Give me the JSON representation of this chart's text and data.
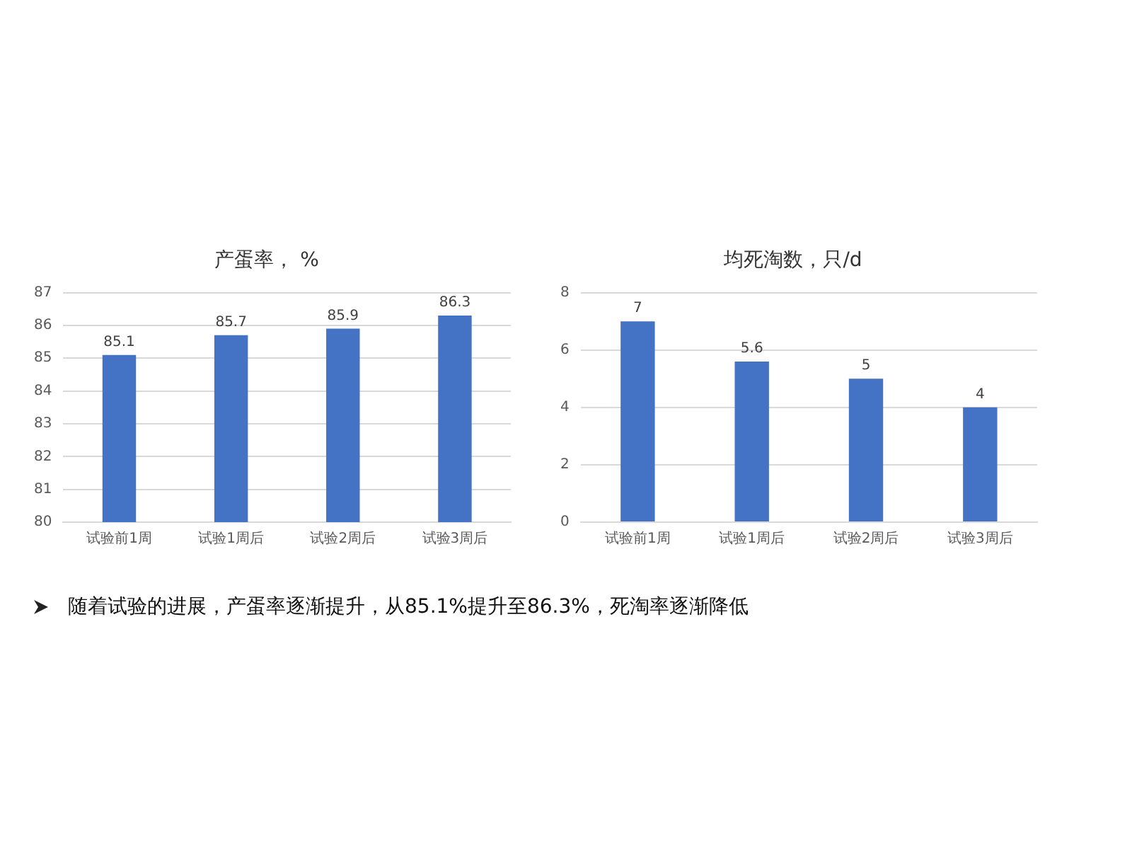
{
  "chart_data": [
    {
      "type": "bar",
      "title": "产蛋率， %",
      "categories": [
        "试验前1周",
        "试验1周后",
        "试验2周后",
        "试验3周后"
      ],
      "values": [
        85.1,
        85.7,
        85.9,
        86.3
      ],
      "color": "#4472c4",
      "ylim": [
        80,
        87
      ],
      "yticks": [
        80,
        81,
        82,
        83,
        84,
        85,
        86,
        87
      ],
      "grid": "y",
      "data_labels": true,
      "annotations": [
        "随着试验的进展，产蛋率逐渐提升，从85.1%提升至86.3%，死淘率逐渐降低"
      ]
    },
    {
      "type": "bar",
      "title": "均死淘数，只/d",
      "categories": [
        "试验前1周",
        "试验1周后",
        "试验2周后",
        "试验3周后"
      ],
      "values": [
        7,
        5.6,
        5,
        4
      ],
      "color": "#4472c4",
      "ylim": [
        0,
        8
      ],
      "yticks": [
        0,
        2,
        4,
        6,
        8
      ],
      "grid": "y",
      "data_labels": true
    }
  ]
}
